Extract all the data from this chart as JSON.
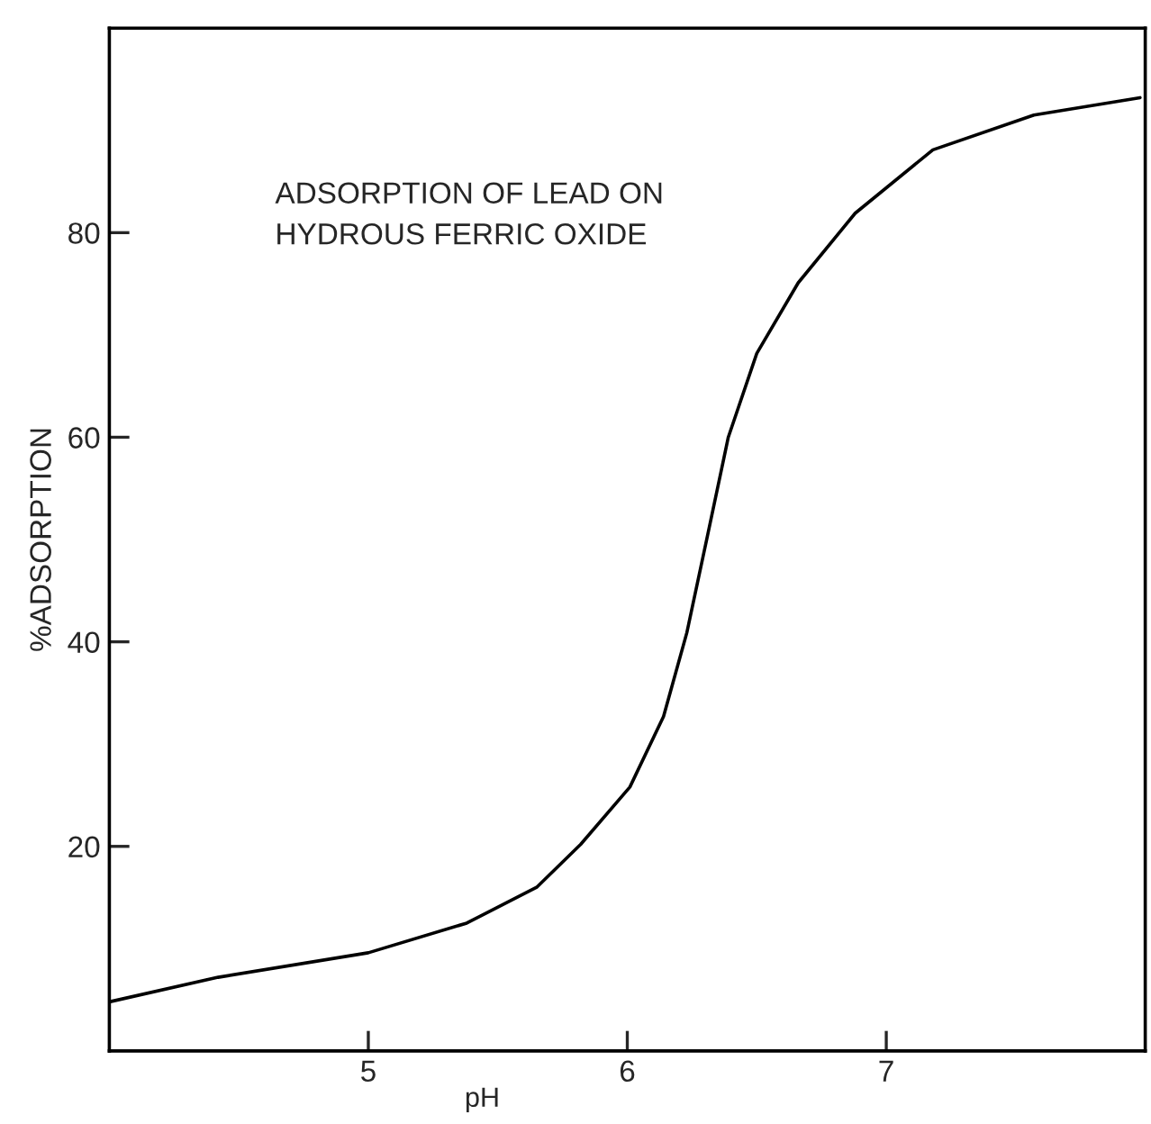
{
  "chart_data": {
    "type": "line",
    "title": "ADSORPTION OF LEAD ON\nHYDROUS FERRIC OXIDE",
    "xlabel": "pH",
    "ylabel": "%ADSORPTION",
    "x": [
      4.0,
      4.42,
      5.0,
      5.38,
      5.65,
      5.82,
      6.01,
      6.14,
      6.23,
      6.31,
      6.39,
      6.5,
      6.66,
      6.88,
      7.18,
      7.57,
      7.98
    ],
    "series": [
      {
        "color": "#000000",
        "values": [
          4.8,
          7.2,
          9.6,
          12.5,
          16.0,
          20.2,
          25.8,
          32.7,
          40.9,
          50.4,
          60.0,
          68.2,
          75.1,
          81.9,
          88.1,
          91.5,
          93.2
        ]
      }
    ],
    "xlim": [
      4,
      8
    ],
    "ylim": [
      0,
      100
    ],
    "xticks": [
      5,
      6,
      7
    ],
    "yticks": [
      20,
      40,
      60,
      80
    ],
    "grid": false,
    "legend": false,
    "marker": "none",
    "line_style": "solid"
  }
}
